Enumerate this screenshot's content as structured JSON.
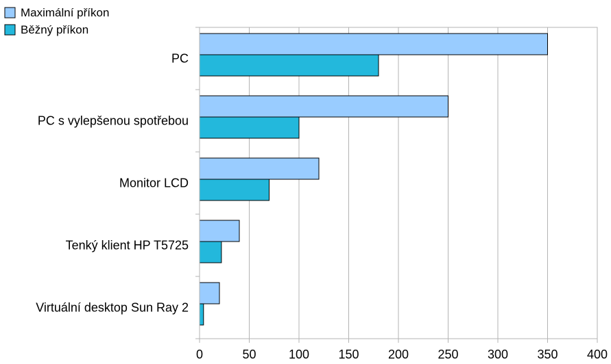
{
  "chart_data": {
    "type": "bar",
    "orientation": "horizontal",
    "categories": [
      "PC",
      "PC s vylepšenou spotřebou",
      "Monitor LCD",
      "Tenký klient HP T5725",
      "Virtuální desktop Sun Ray 2"
    ],
    "series": [
      {
        "name": "Maximální příkon",
        "values": [
          350,
          250,
          120,
          40,
          20
        ],
        "color": "#99ccff"
      },
      {
        "name": "Běžný příkon",
        "values": [
          180,
          100,
          70,
          22,
          4
        ],
        "color": "#23b8dc"
      }
    ],
    "title": "",
    "xlabel": "",
    "ylabel": "",
    "xlim": [
      0,
      400
    ],
    "xticks": [
      "0",
      "50",
      "100",
      "150",
      "200",
      "250",
      "300",
      "350",
      "400"
    ],
    "grid": "vertical",
    "legend_position": "top-left"
  }
}
